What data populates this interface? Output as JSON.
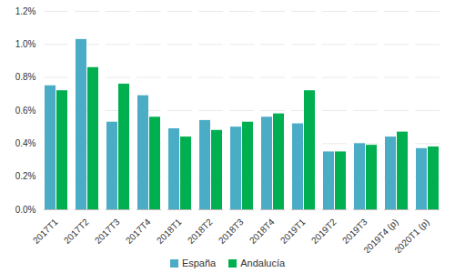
{
  "chart_data": {
    "type": "bar",
    "categories": [
      "2017T1",
      "2017T2",
      "2017T3",
      "2017T4",
      "2018T1",
      "2018T2",
      "2018T3",
      "2018T4",
      "2019T1",
      "2019T2",
      "2019T3",
      "2019T4 (p)",
      "2020T1 (p)"
    ],
    "series": [
      {
        "name": "España",
        "color": "#4bacc6",
        "values": [
          0.75,
          1.03,
          0.53,
          0.69,
          0.49,
          0.54,
          0.5,
          0.56,
          0.52,
          0.35,
          0.4,
          0.44,
          0.37
        ]
      },
      {
        "name": "Andalucía",
        "color": "#00b050",
        "values": [
          0.72,
          0.86,
          0.76,
          0.56,
          0.44,
          0.48,
          0.53,
          0.58,
          0.72,
          0.35,
          0.39,
          0.47,
          0.38
        ]
      }
    ],
    "ylim": [
      0,
      1.2
    ],
    "yticks": [
      {
        "value": 0,
        "label": "0.0%"
      },
      {
        "value": 0.2,
        "label": "0.2%"
      },
      {
        "value": 0.4,
        "label": "0.4%"
      },
      {
        "value": 0.6,
        "label": "0.6%"
      },
      {
        "value": 0.8,
        "label": "0.8%"
      },
      {
        "value": 1.0,
        "label": "1.0%"
      },
      {
        "value": 1.2,
        "label": "1.2%"
      }
    ],
    "grid": true,
    "legend": "bottom"
  }
}
